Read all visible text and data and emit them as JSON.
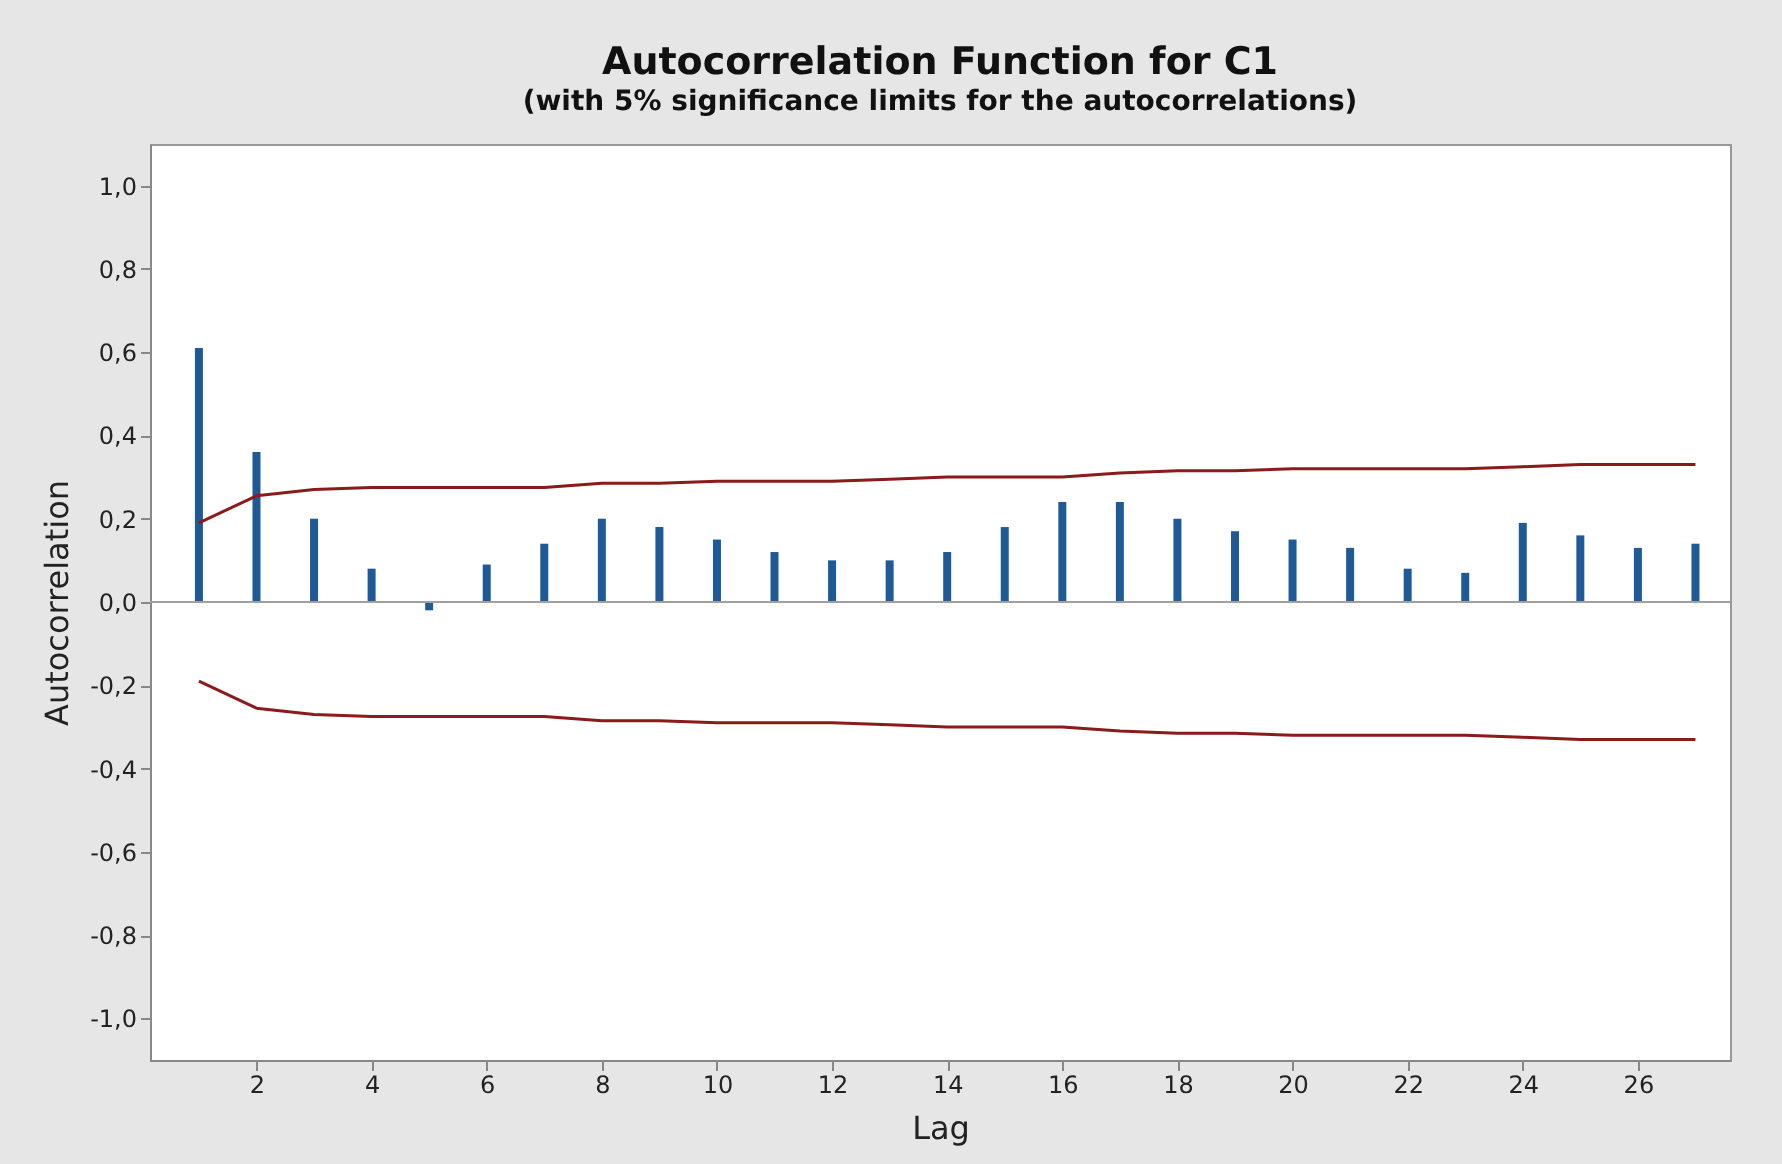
{
  "chart_data": {
    "type": "bar",
    "title": "Autocorrelation Function for C1",
    "subtitle": "(with 5% significance limits for the autocorrelations)",
    "xlabel": "Lag",
    "ylabel": "Autocorrelation",
    "x": [
      1,
      2,
      3,
      4,
      5,
      6,
      7,
      8,
      9,
      10,
      11,
      12,
      13,
      14,
      15,
      16,
      17,
      18,
      19,
      20,
      21,
      22,
      23,
      24,
      25,
      26,
      27
    ],
    "series": [
      {
        "color": "#1f5a96",
        "values": [
          0.61,
          0.36,
          0.2,
          0.08,
          -0.02,
          0.09,
          0.14,
          0.2,
          0.18,
          0.15,
          0.12,
          0.1,
          0.1,
          0.12,
          0.18,
          0.24,
          0.24,
          0.2,
          0.17,
          0.15,
          0.13,
          0.08,
          0.07,
          0.19,
          0.16,
          0.13,
          0.14
        ]
      },
      {
        "type": "line",
        "color": "#8b1a1a",
        "values": [
          0.19,
          0.255,
          0.27,
          0.275,
          0.275,
          0.275,
          0.275,
          0.285,
          0.285,
          0.29,
          0.29,
          0.29,
          0.295,
          0.3,
          0.3,
          0.3,
          0.31,
          0.315,
          0.315,
          0.32,
          0.32,
          0.32,
          0.32,
          0.325,
          0.33,
          0.33,
          0.33
        ]
      },
      {
        "type": "line",
        "color": "#8b1a1a",
        "values": [
          -0.19,
          -0.255,
          -0.27,
          -0.275,
          -0.275,
          -0.275,
          -0.275,
          -0.285,
          -0.285,
          -0.29,
          -0.29,
          -0.29,
          -0.295,
          -0.3,
          -0.3,
          -0.3,
          -0.31,
          -0.315,
          -0.315,
          -0.32,
          -0.32,
          -0.32,
          -0.32,
          -0.325,
          -0.33,
          -0.33,
          -0.33
        ]
      }
    ],
    "xlim": [
      0.15,
      27.6
    ],
    "xticks": [
      2,
      4,
      6,
      8,
      10,
      12,
      14,
      16,
      18,
      20,
      22,
      24,
      26
    ],
    "ylim": [
      -1.1,
      1.1
    ],
    "yticks": [
      {
        "value": -1.0,
        "label": "-1,0"
      },
      {
        "value": -0.8,
        "label": "-0,8"
      },
      {
        "value": -0.6,
        "label": "-0,6"
      },
      {
        "value": -0.4,
        "label": "-0,4"
      },
      {
        "value": -0.2,
        "label": "-0,2"
      },
      {
        "value": 0.0,
        "label": "0,0"
      },
      {
        "value": 0.2,
        "label": "0,2"
      },
      {
        "value": 0.4,
        "label": "0,4"
      },
      {
        "value": 0.6,
        "label": "0,6"
      },
      {
        "value": 0.8,
        "label": "0,8"
      },
      {
        "value": 1.0,
        "label": "1,0"
      }
    ],
    "ref_lines": [
      {
        "axis": "y",
        "value": 0,
        "color": "#a0a0a0"
      }
    ],
    "grid": false
  }
}
